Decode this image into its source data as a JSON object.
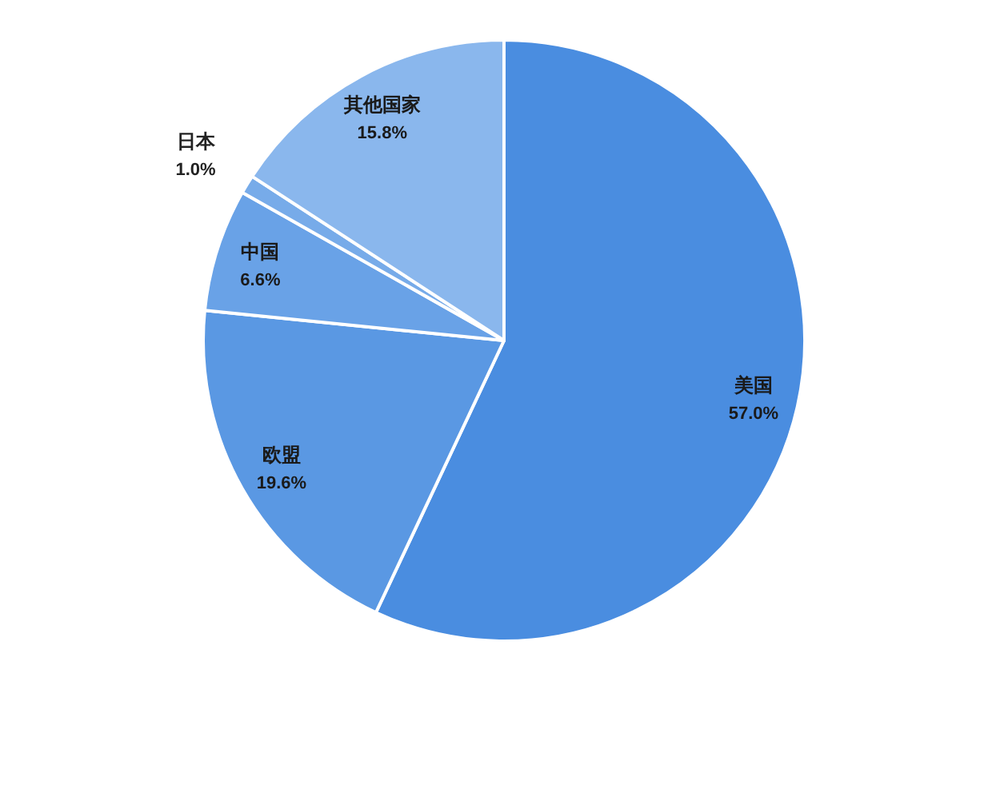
{
  "chart_data": {
    "type": "pie",
    "categories": [
      "美国",
      "欧盟",
      "中国",
      "日本",
      "其他国家"
    ],
    "values": [
      57.0,
      19.6,
      6.6,
      1.0,
      15.8
    ],
    "value_labels": [
      "57.0%",
      "19.6%",
      "6.6%",
      "1.0%",
      "15.8%"
    ],
    "colors": [
      "#4a8de0",
      "#5a98e3",
      "#69a2e7",
      "#77abe9",
      "#8ab7ed"
    ]
  }
}
